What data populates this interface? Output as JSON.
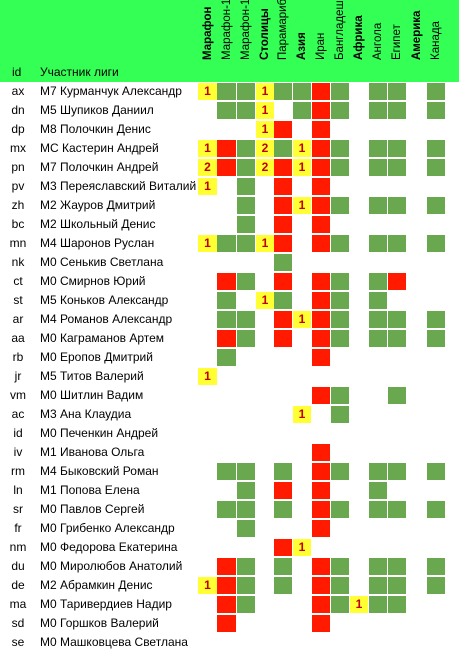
{
  "header": {
    "id_label": "id",
    "name_label": "Участник лиги",
    "columns": [
      {
        "label": "Марафон",
        "bold": true
      },
      {
        "label": "Марафон-10",
        "bold": false
      },
      {
        "label": "Марафон-11",
        "bold": false
      },
      {
        "label": "Столицы",
        "bold": true
      },
      {
        "label": "Парамарибо",
        "bold": false
      },
      {
        "label": "Азия",
        "bold": true
      },
      {
        "label": "Иран",
        "bold": false
      },
      {
        "label": "Бангладеш",
        "bold": false
      },
      {
        "label": "Африка",
        "bold": true
      },
      {
        "label": "Ангола",
        "bold": false
      },
      {
        "label": "Египет",
        "bold": false
      },
      {
        "label": "Америка",
        "bold": true
      },
      {
        "label": "Канада",
        "bold": false
      }
    ]
  },
  "colors": {
    "header_green": "#33ff55",
    "cell_green": "#6aa84f",
    "cell_red": "#ff1a00",
    "cell_yellow": "#ffff33"
  },
  "rows": [
    {
      "id": "ax",
      "name": "M7 Курманчук Александр",
      "cells": [
        "1",
        "G",
        "G",
        "1",
        "G",
        "G",
        "R",
        "G",
        "",
        "G",
        "G",
        "",
        "G"
      ]
    },
    {
      "id": "dn",
      "name": "M5 Шупиков Даниил",
      "cells": [
        "",
        "G",
        "G",
        "1",
        "",
        "G",
        "R",
        "G",
        "",
        "G",
        "G",
        "",
        "G"
      ]
    },
    {
      "id": "dp",
      "name": "M8 Полочкин Денис",
      "cells": [
        "",
        "",
        "",
        "1",
        "R",
        "",
        "R",
        "",
        "",
        "",
        "",
        "",
        ""
      ]
    },
    {
      "id": "mx",
      "name": "MC Кастерин Андрей",
      "cells": [
        "1",
        "R",
        "G",
        "2",
        "G",
        "1",
        "R",
        "G",
        "",
        "G",
        "G",
        "",
        "G"
      ]
    },
    {
      "id": "pn",
      "name": "M7 Полочкин Андрей",
      "cells": [
        "2",
        "R",
        "G",
        "2",
        "R",
        "1",
        "R",
        "G",
        "",
        "G",
        "G",
        "",
        "G"
      ]
    },
    {
      "id": "pv",
      "name": "M3 Переяславский Виталий",
      "cells": [
        "1",
        "",
        "G",
        "",
        "R",
        "",
        "R",
        "",
        "",
        "",
        "",
        "",
        ""
      ]
    },
    {
      "id": "zh",
      "name": "M2 Жауров Дмитрий",
      "cells": [
        "",
        "",
        "G",
        "",
        "R",
        "1",
        "R",
        "G",
        "",
        "G",
        "G",
        "",
        "G"
      ]
    },
    {
      "id": "bc",
      "name": "M2 Школьный Денис",
      "cells": [
        "",
        "",
        "G",
        "",
        "R",
        "",
        "R",
        "",
        "",
        "",
        "",
        "",
        ""
      ]
    },
    {
      "id": "mn",
      "name": "M4 Шаронов Руслан",
      "cells": [
        "1",
        "G",
        "G",
        "1",
        "R",
        "",
        "R",
        "G",
        "",
        "G",
        "G",
        "",
        "G"
      ]
    },
    {
      "id": "nk",
      "name": "M0 Сенькив Светлана",
      "cells": [
        "",
        "",
        "",
        "",
        "G",
        "",
        "",
        "",
        "",
        "",
        "",
        "",
        ""
      ]
    },
    {
      "id": "ct",
      "name": "M0 Смирнов Юрий",
      "cells": [
        "",
        "R",
        "G",
        "",
        "R",
        "",
        "R",
        "G",
        "",
        "G",
        "R",
        "",
        ""
      ]
    },
    {
      "id": "st",
      "name": "M5 Коньков Александр",
      "cells": [
        "",
        "G",
        "",
        "1",
        "G",
        "",
        "R",
        "G",
        "",
        "G",
        "",
        "",
        ""
      ]
    },
    {
      "id": "ar",
      "name": "M4 Романов Александр",
      "cells": [
        "",
        "G",
        "G",
        "",
        "R",
        "1",
        "R",
        "G",
        "",
        "G",
        "G",
        "",
        "G"
      ]
    },
    {
      "id": "aa",
      "name": "M0 Каграманов Артем",
      "cells": [
        "",
        "R",
        "G",
        "",
        "R",
        "",
        "R",
        "G",
        "",
        "G",
        "G",
        "",
        "G"
      ]
    },
    {
      "id": "rb",
      "name": "M0 Еропов Дмитрий",
      "cells": [
        "",
        "G",
        "",
        "",
        "",
        "",
        "R",
        "",
        "",
        "",
        "",
        "",
        ""
      ]
    },
    {
      "id": "jr",
      "name": "M5 Титов Валерий",
      "cells": [
        "1",
        "",
        "",
        "",
        "",
        "",
        "",
        "",
        "",
        "",
        "",
        "",
        ""
      ]
    },
    {
      "id": "vm",
      "name": "M0 Шитлин Вадим",
      "cells": [
        "",
        "",
        "",
        "",
        "",
        "",
        "R",
        "G",
        "",
        "",
        "G",
        "",
        ""
      ]
    },
    {
      "id": "ac",
      "name": "M3 Ана Клаудиа",
      "cells": [
        "",
        "",
        "",
        "",
        "",
        "1",
        "",
        "G",
        "",
        "",
        "",
        "",
        ""
      ]
    },
    {
      "id": "id",
      "name": "M0 Печенкин Андрей",
      "cells": [
        "",
        "",
        "",
        "",
        "",
        "",
        "",
        "",
        "",
        "",
        "",
        "",
        ""
      ]
    },
    {
      "id": "iv",
      "name": "M1 Иванова Ольга",
      "cells": [
        "",
        "",
        "",
        "",
        "",
        "",
        "R",
        "",
        "",
        "",
        "",
        "",
        ""
      ]
    },
    {
      "id": "rm",
      "name": "M4 Быковский Роман",
      "cells": [
        "",
        "G",
        "G",
        "",
        "G",
        "",
        "R",
        "G",
        "",
        "G",
        "G",
        "",
        "G"
      ]
    },
    {
      "id": "ln",
      "name": "M1 Попова Елена",
      "cells": [
        "",
        "",
        "G",
        "",
        "R",
        "",
        "R",
        "",
        "",
        "G",
        "",
        "",
        ""
      ]
    },
    {
      "id": "sr",
      "name": "M0 Павлов Сергей",
      "cells": [
        "",
        "G",
        "G",
        "",
        "G",
        "",
        "R",
        "G",
        "",
        "G",
        "G",
        "",
        "G"
      ]
    },
    {
      "id": "fr",
      "name": "M0 Грибенко Александр",
      "cells": [
        "",
        "",
        "G",
        "",
        "",
        "",
        "R",
        "",
        "",
        "",
        "",
        "",
        ""
      ]
    },
    {
      "id": "nm",
      "name": "M0 Федорова Екатерина",
      "cells": [
        "",
        "",
        "",
        "",
        "R",
        "1",
        "",
        "",
        "",
        "",
        "",
        "",
        ""
      ]
    },
    {
      "id": "du",
      "name": "M0 Миролюбов Анатолий",
      "cells": [
        "",
        "R",
        "G",
        "",
        "G",
        "",
        "R",
        "G",
        "",
        "G",
        "G",
        "",
        "G"
      ]
    },
    {
      "id": "de",
      "name": "M2 Абрамкин Денис",
      "cells": [
        "1",
        "R",
        "G",
        "",
        "G",
        "",
        "R",
        "G",
        "",
        "G",
        "G",
        "",
        "G"
      ]
    },
    {
      "id": "ma",
      "name": "M0 Таривердиев Надир",
      "cells": [
        "",
        "R",
        "G",
        "",
        "",
        "",
        "R",
        "G",
        "1",
        "G",
        "G",
        "",
        ""
      ]
    },
    {
      "id": "sd",
      "name": "M0 Горшков Валерий",
      "cells": [
        "",
        "R",
        "",
        "",
        "",
        "",
        "R",
        "",
        "",
        "",
        "",
        "",
        ""
      ]
    },
    {
      "id": "se",
      "name": "M0 Машковцева Светлана",
      "cells": [
        "",
        "",
        "",
        "",
        "",
        "",
        "",
        "",
        "",
        "",
        "",
        "",
        ""
      ]
    }
  ]
}
